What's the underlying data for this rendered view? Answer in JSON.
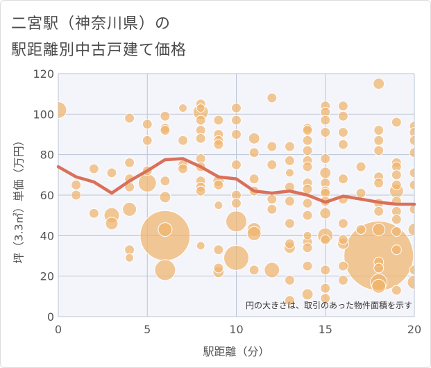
{
  "chart_data": {
    "type": "scatter",
    "title_line1": "二宮駅（神奈川県）の",
    "title_line2": "駅距離別中古戸建て価格",
    "xlabel": "駅距離（分）",
    "ylabel": "坪（3.3㎡）単価（万円）",
    "annotation": "円の大きさは、取引のあった物件面積を示す",
    "xlim": [
      0,
      20
    ],
    "ylim": [
      0,
      120
    ],
    "xticks": [
      0,
      5,
      10,
      15,
      20
    ],
    "yticks": [
      0,
      20,
      40,
      60,
      80,
      100,
      120
    ],
    "colors": {
      "bubble": "#f0b46e",
      "bubble_stroke": "#ffffff",
      "line": "#d9705a",
      "grid": "#b8c4d6",
      "plot_bg": "#f4f5fa"
    },
    "bubbles": [
      {
        "x": 0,
        "y": 102,
        "s": 12
      },
      {
        "x": 1,
        "y": 60,
        "s": 7
      },
      {
        "x": 1,
        "y": 65,
        "s": 7
      },
      {
        "x": 2,
        "y": 73,
        "s": 7
      },
      {
        "x": 2,
        "y": 51,
        "s": 7
      },
      {
        "x": 3,
        "y": 71,
        "s": 7
      },
      {
        "x": 3,
        "y": 50,
        "s": 11
      },
      {
        "x": 3,
        "y": 46,
        "s": 9
      },
      {
        "x": 4,
        "y": 98,
        "s": 7
      },
      {
        "x": 4,
        "y": 76,
        "s": 7
      },
      {
        "x": 4,
        "y": 68,
        "s": 7
      },
      {
        "x": 4,
        "y": 64,
        "s": 7
      },
      {
        "x": 4,
        "y": 53,
        "s": 10
      },
      {
        "x": 4,
        "y": 33,
        "s": 7
      },
      {
        "x": 4,
        "y": 29,
        "s": 6
      },
      {
        "x": 5,
        "y": 95,
        "s": 7
      },
      {
        "x": 5,
        "y": 87,
        "s": 7
      },
      {
        "x": 5,
        "y": 72,
        "s": 7
      },
      {
        "x": 5,
        "y": 66,
        "s": 13
      },
      {
        "x": 6,
        "y": 99,
        "s": 7
      },
      {
        "x": 6,
        "y": 93,
        "s": 7
      },
      {
        "x": 6,
        "y": 92,
        "s": 7
      },
      {
        "x": 6,
        "y": 67,
        "s": 7
      },
      {
        "x": 6,
        "y": 59,
        "s": 8
      },
      {
        "x": 6,
        "y": 40,
        "s": 36
      },
      {
        "x": 6,
        "y": 43,
        "s": 10
      },
      {
        "x": 6,
        "y": 23,
        "s": 15
      },
      {
        "x": 7,
        "y": 103,
        "s": 6
      },
      {
        "x": 7,
        "y": 87,
        "s": 7
      },
      {
        "x": 7,
        "y": 75,
        "s": 7
      },
      {
        "x": 7,
        "y": 73,
        "s": 7
      },
      {
        "x": 8,
        "y": 105,
        "s": 7
      },
      {
        "x": 8,
        "y": 103,
        "s": 6
      },
      {
        "x": 8,
        "y": 101,
        "s": 11
      },
      {
        "x": 8,
        "y": 97,
        "s": 7
      },
      {
        "x": 8,
        "y": 92,
        "s": 7
      },
      {
        "x": 8,
        "y": 88,
        "s": 7
      },
      {
        "x": 8,
        "y": 78,
        "s": 7
      },
      {
        "x": 8,
        "y": 74,
        "s": 7
      },
      {
        "x": 8,
        "y": 67,
        "s": 7
      },
      {
        "x": 8,
        "y": 64,
        "s": 7
      },
      {
        "x": 8,
        "y": 62,
        "s": 7
      },
      {
        "x": 8,
        "y": 35,
        "s": 6
      },
      {
        "x": 9,
        "y": 97,
        "s": 7
      },
      {
        "x": 9,
        "y": 90,
        "s": 7
      },
      {
        "x": 9,
        "y": 87,
        "s": 7
      },
      {
        "x": 9,
        "y": 85,
        "s": 7
      },
      {
        "x": 9,
        "y": 67,
        "s": 8
      },
      {
        "x": 9,
        "y": 65,
        "s": 7
      },
      {
        "x": 9,
        "y": 55,
        "s": 6
      },
      {
        "x": 9,
        "y": 33,
        "s": 7
      },
      {
        "x": 9,
        "y": 24,
        "s": 7
      },
      {
        "x": 9,
        "y": 22,
        "s": 8
      },
      {
        "x": 10,
        "y": 103,
        "s": 7
      },
      {
        "x": 10,
        "y": 97,
        "s": 7
      },
      {
        "x": 10,
        "y": 90,
        "s": 7
      },
      {
        "x": 10,
        "y": 75,
        "s": 7
      },
      {
        "x": 10,
        "y": 60,
        "s": 7
      },
      {
        "x": 10,
        "y": 56,
        "s": 7
      },
      {
        "x": 10,
        "y": 47,
        "s": 15
      },
      {
        "x": 10,
        "y": 29,
        "s": 18
      },
      {
        "x": 11,
        "y": 88,
        "s": 8
      },
      {
        "x": 11,
        "y": 81,
        "s": 7
      },
      {
        "x": 11,
        "y": 68,
        "s": 7
      },
      {
        "x": 11,
        "y": 62,
        "s": 7
      },
      {
        "x": 11,
        "y": 43,
        "s": 10
      },
      {
        "x": 11,
        "y": 41,
        "s": 10
      },
      {
        "x": 11,
        "y": 23,
        "s": 7
      },
      {
        "x": 12,
        "y": 108,
        "s": 7
      },
      {
        "x": 12,
        "y": 84,
        "s": 7
      },
      {
        "x": 12,
        "y": 75,
        "s": 7
      },
      {
        "x": 12,
        "y": 58,
        "s": 7
      },
      {
        "x": 12,
        "y": 53,
        "s": 7
      },
      {
        "x": 12,
        "y": 23,
        "s": 11
      },
      {
        "x": 13,
        "y": 84,
        "s": 7
      },
      {
        "x": 13,
        "y": 77,
        "s": 7
      },
      {
        "x": 13,
        "y": 71,
        "s": 6
      },
      {
        "x": 13,
        "y": 64,
        "s": 7
      },
      {
        "x": 13,
        "y": 57,
        "s": 7
      },
      {
        "x": 13,
        "y": 46,
        "s": 7
      },
      {
        "x": 13,
        "y": 36,
        "s": 7
      },
      {
        "x": 13,
        "y": 34,
        "s": 8
      },
      {
        "x": 13,
        "y": 18,
        "s": 7
      },
      {
        "x": 13,
        "y": 8,
        "s": 7
      },
      {
        "x": 14,
        "y": 93,
        "s": 7
      },
      {
        "x": 14,
        "y": 92,
        "s": 7
      },
      {
        "x": 14,
        "y": 87,
        "s": 7
      },
      {
        "x": 14,
        "y": 82,
        "s": 7
      },
      {
        "x": 14,
        "y": 77,
        "s": 7
      },
      {
        "x": 14,
        "y": 74,
        "s": 7
      },
      {
        "x": 14,
        "y": 66,
        "s": 7
      },
      {
        "x": 14,
        "y": 63,
        "s": 7
      },
      {
        "x": 14,
        "y": 56,
        "s": 7
      },
      {
        "x": 14,
        "y": 50,
        "s": 7
      },
      {
        "x": 14,
        "y": 40,
        "s": 6
      },
      {
        "x": 14,
        "y": 37,
        "s": 7
      },
      {
        "x": 14,
        "y": 34,
        "s": 7
      },
      {
        "x": 14,
        "y": 25,
        "s": 7
      },
      {
        "x": 14,
        "y": 11,
        "s": 8
      },
      {
        "x": 15,
        "y": 104,
        "s": 7
      },
      {
        "x": 15,
        "y": 101,
        "s": 7
      },
      {
        "x": 15,
        "y": 97,
        "s": 7
      },
      {
        "x": 15,
        "y": 91,
        "s": 7
      },
      {
        "x": 15,
        "y": 78,
        "s": 7
      },
      {
        "x": 15,
        "y": 71,
        "s": 8
      },
      {
        "x": 15,
        "y": 66,
        "s": 7
      },
      {
        "x": 15,
        "y": 62,
        "s": 7
      },
      {
        "x": 15,
        "y": 61,
        "s": 7
      },
      {
        "x": 15,
        "y": 57,
        "s": 7
      },
      {
        "x": 15,
        "y": 51,
        "s": 8
      },
      {
        "x": 15,
        "y": 40,
        "s": 11
      },
      {
        "x": 15,
        "y": 38,
        "s": 7
      },
      {
        "x": 15,
        "y": 23,
        "s": 7
      },
      {
        "x": 15,
        "y": 14,
        "s": 7
      },
      {
        "x": 15,
        "y": 9,
        "s": 7
      },
      {
        "x": 16,
        "y": 104,
        "s": 7
      },
      {
        "x": 16,
        "y": 99,
        "s": 7
      },
      {
        "x": 16,
        "y": 91,
        "s": 7
      },
      {
        "x": 16,
        "y": 85,
        "s": 7
      },
      {
        "x": 16,
        "y": 68,
        "s": 7
      },
      {
        "x": 16,
        "y": 58,
        "s": 7
      },
      {
        "x": 16,
        "y": 46,
        "s": 7
      },
      {
        "x": 16,
        "y": 38,
        "s": 7
      },
      {
        "x": 16,
        "y": 36,
        "s": 8
      },
      {
        "x": 16,
        "y": 25,
        "s": 7
      },
      {
        "x": 16,
        "y": 18,
        "s": 7
      },
      {
        "x": 17,
        "y": 74,
        "s": 7
      },
      {
        "x": 17,
        "y": 61,
        "s": 7
      },
      {
        "x": 17,
        "y": 43,
        "s": 7
      },
      {
        "x": 18,
        "y": 115,
        "s": 8
      },
      {
        "x": 18,
        "y": 92,
        "s": 7
      },
      {
        "x": 18,
        "y": 87,
        "s": 7
      },
      {
        "x": 18,
        "y": 82,
        "s": 7
      },
      {
        "x": 18,
        "y": 69,
        "s": 7
      },
      {
        "x": 18,
        "y": 66,
        "s": 7
      },
      {
        "x": 18,
        "y": 56,
        "s": 7
      },
      {
        "x": 18,
        "y": 52,
        "s": 7
      },
      {
        "x": 18,
        "y": 43,
        "s": 9
      },
      {
        "x": 18,
        "y": 30,
        "s": 50
      },
      {
        "x": 18,
        "y": 27,
        "s": 7
      },
      {
        "x": 18,
        "y": 24,
        "s": 7
      },
      {
        "x": 18,
        "y": 17,
        "s": 12
      },
      {
        "x": 18,
        "y": 15,
        "s": 10
      },
      {
        "x": 19,
        "y": 96,
        "s": 7
      },
      {
        "x": 19,
        "y": 76,
        "s": 7
      },
      {
        "x": 19,
        "y": 74,
        "s": 7
      },
      {
        "x": 19,
        "y": 70,
        "s": 7
      },
      {
        "x": 19,
        "y": 65,
        "s": 7
      },
      {
        "x": 19,
        "y": 62,
        "s": 10
      },
      {
        "x": 19,
        "y": 57,
        "s": 7
      },
      {
        "x": 19,
        "y": 52,
        "s": 7
      },
      {
        "x": 19,
        "y": 48,
        "s": 7
      },
      {
        "x": 19,
        "y": 42,
        "s": 7
      },
      {
        "x": 19,
        "y": 33,
        "s": 7
      },
      {
        "x": 19,
        "y": 13,
        "s": 7
      },
      {
        "x": 20,
        "y": 94,
        "s": 7
      },
      {
        "x": 20,
        "y": 91,
        "s": 7
      },
      {
        "x": 20,
        "y": 87,
        "s": 7
      },
      {
        "x": 20,
        "y": 81,
        "s": 7
      },
      {
        "x": 20,
        "y": 71,
        "s": 7
      },
      {
        "x": 20,
        "y": 65,
        "s": 7
      },
      {
        "x": 20,
        "y": 53,
        "s": 7
      },
      {
        "x": 20,
        "y": 43,
        "s": 9
      },
      {
        "x": 20,
        "y": 23,
        "s": 7
      },
      {
        "x": 20,
        "y": 17,
        "s": 10
      }
    ],
    "trend_line": {
      "x": [
        0,
        1,
        2,
        3,
        4,
        5,
        6,
        7,
        8,
        9,
        10,
        11,
        12,
        13,
        14,
        15,
        16,
        17,
        18,
        19,
        20
      ],
      "y": [
        74,
        69,
        66.5,
        61,
        67,
        72,
        77.5,
        78,
        74,
        69,
        68,
        62,
        61,
        62,
        60,
        56.5,
        59.5,
        58,
        56.5,
        55.5,
        55.5
      ]
    }
  }
}
